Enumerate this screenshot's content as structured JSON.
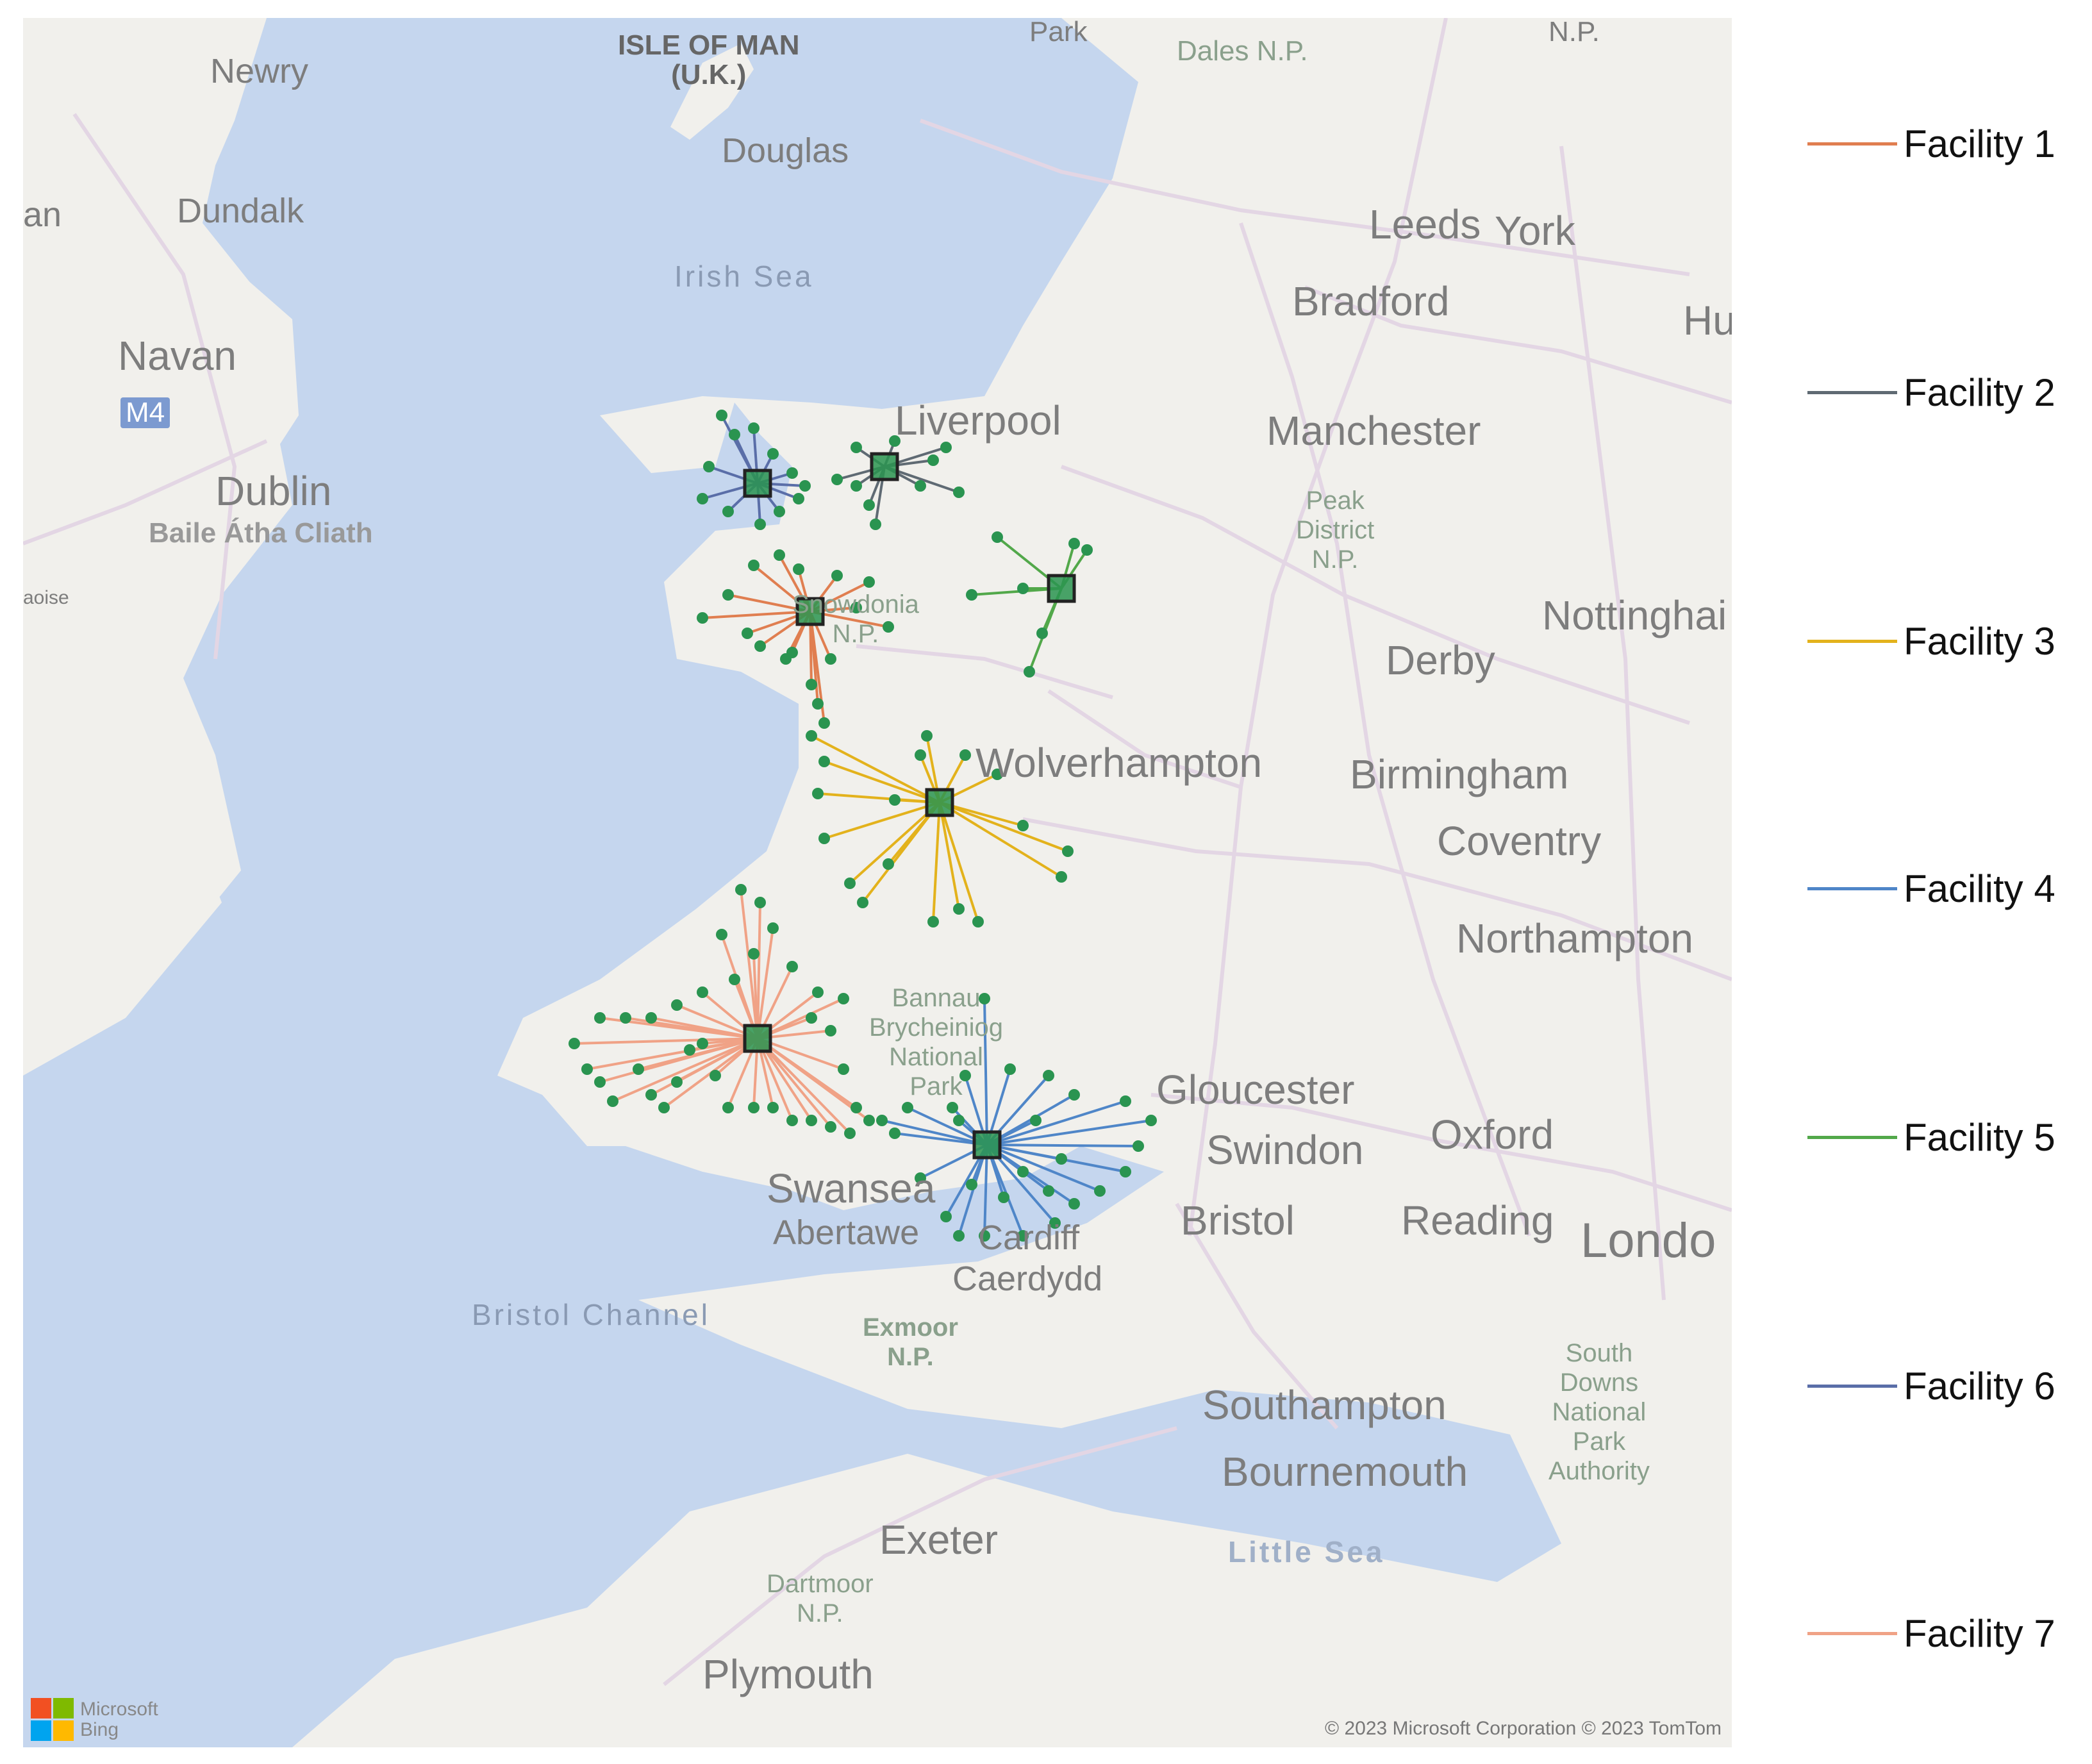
{
  "map": {
    "places": [
      {
        "key": "newry",
        "text": "Newry"
      },
      {
        "key": "isle_of_man",
        "text": "ISLE OF MAN\n(U.K.)"
      },
      {
        "key": "park_top",
        "text": "Park"
      },
      {
        "key": "dales",
        "text": "Dales N.P."
      },
      {
        "key": "np_top",
        "text": "N.P."
      },
      {
        "key": "douglas",
        "text": "Douglas"
      },
      {
        "key": "an",
        "text": "an"
      },
      {
        "key": "dundalk",
        "text": "Dundalk"
      },
      {
        "key": "leeds",
        "text": "Leeds"
      },
      {
        "key": "york",
        "text": "York"
      },
      {
        "key": "irish_sea",
        "text": "Irish Sea"
      },
      {
        "key": "bradford",
        "text": "Bradford"
      },
      {
        "key": "hu",
        "text": "Hu"
      },
      {
        "key": "navan",
        "text": "Navan"
      },
      {
        "key": "m4",
        "text": "M4"
      },
      {
        "key": "liverpool",
        "text": "Liverpool"
      },
      {
        "key": "manchester",
        "text": "Manchester"
      },
      {
        "key": "dublin",
        "text": "Dublin"
      },
      {
        "key": "baile",
        "text": "Baile Átha Cliath"
      },
      {
        "key": "peak",
        "text": "Peak\nDistrict\nN.P."
      },
      {
        "key": "aoise",
        "text": "aoise"
      },
      {
        "key": "snowdonia",
        "text": "Snowdonia\nN.P."
      },
      {
        "key": "nottingham",
        "text": "Nottinghai"
      },
      {
        "key": "derby",
        "text": "Derby"
      },
      {
        "key": "wolverhampton",
        "text": "Wolverhampton"
      },
      {
        "key": "birmingham",
        "text": "Birmingham"
      },
      {
        "key": "coventry",
        "text": "Coventry"
      },
      {
        "key": "northampton",
        "text": "Northampton"
      },
      {
        "key": "bannau",
        "text": "Bannau\nBrycheiniog\nNational\nPark"
      },
      {
        "key": "gloucester",
        "text": "Gloucester"
      },
      {
        "key": "oxford",
        "text": "Oxford"
      },
      {
        "key": "swindon",
        "text": "Swindon"
      },
      {
        "key": "swansea",
        "text": "Swansea"
      },
      {
        "key": "abertawe",
        "text": "Abertawe"
      },
      {
        "key": "cardiff",
        "text": "Cardiff"
      },
      {
        "key": "bristol",
        "text": "Bristol"
      },
      {
        "key": "reading",
        "text": "Reading"
      },
      {
        "key": "london",
        "text": "Londo"
      },
      {
        "key": "caerdydd",
        "text": "Caerdydd"
      },
      {
        "key": "bristol_channel",
        "text": "Bristol Channel"
      },
      {
        "key": "exmoor",
        "text": "Exmoor\nN.P."
      },
      {
        "key": "south_downs",
        "text": "South\nDowns\nNational\nPark\nAuthority"
      },
      {
        "key": "southampton",
        "text": "Southampton"
      },
      {
        "key": "bournemouth",
        "text": "Bournemouth"
      },
      {
        "key": "little_sea",
        "text": "Little Sea"
      },
      {
        "key": "exeter",
        "text": "Exeter"
      },
      {
        "key": "dartmoor",
        "text": "Dartmoor\nN.P."
      },
      {
        "key": "plymouth",
        "text": "Plymouth"
      }
    ],
    "copyright": "© 2023 Microsoft Corporation © 2023 TomTom",
    "provider": "Microsoft\nBing",
    "provider_colors": [
      "#f25022",
      "#7fba00",
      "#00a4ef",
      "#ffb900"
    ],
    "colors": {
      "sea": "#c5d6ee",
      "land": "#f1f0ec",
      "road": "#e3d6e4",
      "point": "#2a9450",
      "facility_outline": "#222222"
    }
  },
  "legend": [
    {
      "label": "Facility 1",
      "color": "#e07e50"
    },
    {
      "label": "Facility 2",
      "color": "#5f6a73"
    },
    {
      "label": "Facility 3",
      "color": "#e3b21c"
    },
    {
      "label": "Facility 4",
      "color": "#4f86c8"
    },
    {
      "label": "Facility 5",
      "color": "#52a84a"
    },
    {
      "label": "Facility 6",
      "color": "#5a6ea8"
    },
    {
      "label": "Facility 7",
      "color": "#f0a286"
    }
  ]
}
